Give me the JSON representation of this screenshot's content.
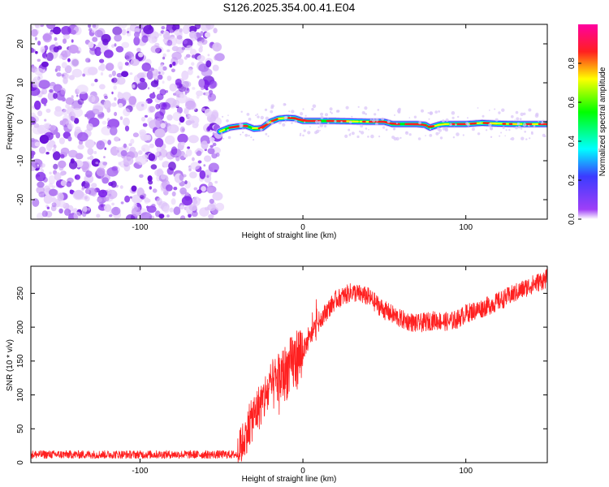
{
  "title": "S126.2025.354.00.41.E04",
  "chart_data": [
    {
      "type": "heatmap",
      "name": "spectrogram",
      "xlabel": "Height of straight line (km)",
      "ylabel": "Frequency (Hz)",
      "xlim": [
        -167,
        150
      ],
      "ylim": [
        -25,
        25
      ],
      "xticks": [
        -100,
        0,
        100
      ],
      "yticks": [
        -20,
        -10,
        0,
        10,
        20
      ],
      "noise_region_x": [
        -167,
        -51
      ],
      "signal_start_x": -51,
      "signal_trace": {
        "x": [
          -51,
          -45,
          -40,
          -35,
          -30,
          -25,
          -20,
          -15,
          -10,
          -5,
          0,
          10,
          20,
          30,
          40,
          50,
          55,
          60,
          70,
          75,
          78,
          80,
          85,
          90,
          100,
          110,
          120,
          130,
          140,
          150
        ],
        "freq": [
          -2.5,
          -1.5,
          -1.2,
          -1.0,
          -1.8,
          -1.6,
          0,
          0.8,
          1.0,
          0.9,
          0.2,
          0.2,
          0.2,
          0.1,
          0,
          0,
          -0.6,
          -0.6,
          -0.6,
          -0.8,
          -1.5,
          -1.2,
          -0.6,
          -0.6,
          -0.6,
          -0.3,
          -0.5,
          -0.6,
          -0.6,
          -0.6
        ]
      },
      "colorbar": {
        "label": "Normalized spectral amplitude",
        "range": [
          0,
          1
        ],
        "ticks": [
          "0.0",
          "0.2",
          "0.4",
          "0.6",
          "0.8"
        ],
        "colors": [
          "#ffffff",
          "#9f3ff7",
          "#3b3bff",
          "#00ffff",
          "#00ff00",
          "#ffff00",
          "#ff2020",
          "#ff00a0"
        ]
      }
    },
    {
      "type": "line",
      "name": "snr",
      "xlabel": "Height of straight line (km)",
      "ylabel": "SNR (10 * v/v)",
      "xlim": [
        -167,
        150
      ],
      "ylim": [
        0,
        290
      ],
      "xticks": [
        -100,
        0,
        100
      ],
      "yticks": [
        0,
        50,
        100,
        150,
        200,
        250
      ],
      "color": "#ff2020",
      "trend": {
        "x": [
          -167,
          -40,
          -38,
          -30,
          -20,
          -10,
          0,
          10,
          20,
          30,
          40,
          50,
          60,
          70,
          80,
          90,
          95,
          100,
          110,
          120,
          130,
          140,
          150
        ],
        "y": [
          12,
          12,
          25,
          70,
          110,
          135,
          165,
          210,
          240,
          252,
          245,
          225,
          212,
          205,
          210,
          208,
          212,
          220,
          228,
          238,
          250,
          262,
          272
        ]
      }
    }
  ]
}
